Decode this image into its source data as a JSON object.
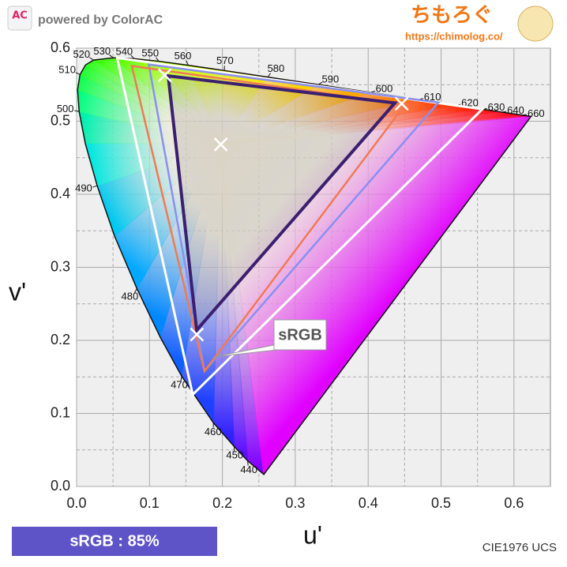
{
  "header": {
    "logo": "AC",
    "brand": "powered by ColorAC",
    "site_name": "ちもろぐ",
    "url": "https://chimolog.co/"
  },
  "chart_data": {
    "type": "scatter",
    "xlabel": "u'",
    "ylabel": "v'",
    "xlim": [
      0,
      0.65
    ],
    "ylim": [
      0,
      0.6
    ],
    "xticks": [
      {
        "value": 0,
        "label": "0.0"
      },
      0.1,
      0.2,
      0.3,
      0.4,
      0.5,
      0.6
    ],
    "yticks": [
      {
        "value": 0,
        "label": "0.0"
      },
      0.1,
      0.2,
      0.3,
      0.4,
      0.5,
      0.6
    ],
    "xminorticks": [
      0.05,
      0.15,
      0.25,
      0.35,
      0.45,
      0.55
    ],
    "yminorticks": [
      0.05,
      0.15,
      0.25,
      0.35,
      0.45,
      0.55
    ],
    "grid": true,
    "locus": {
      "wavelengths": [
        null,
        440,
        450,
        460,
        470,
        null,
        480,
        null,
        490,
        null,
        500,
        null,
        510,
        null,
        520,
        530,
        540,
        550,
        560,
        570,
        580,
        590,
        600,
        610,
        620,
        630,
        640,
        660,
        null
      ],
      "u": [
        0.2568,
        0.2347,
        0.2161,
        0.1877,
        0.1441,
        0.1147,
        0.0828,
        0.0521,
        0.0282,
        0.0119,
        0.0035,
        0.0014,
        0.0046,
        0.0123,
        0.0231,
        0.0501,
        0.0792,
        0.1127,
        0.1531,
        0.2026,
        0.2623,
        0.3315,
        0.4035,
        0.4692,
        0.5203,
        0.5565,
        0.583,
        0.6109,
        0.6234
      ],
      "v": [
        0.0165,
        0.035,
        0.0549,
        0.0871,
        0.151,
        0.2044,
        0.2708,
        0.3427,
        0.4117,
        0.4698,
        0.5131,
        0.5432,
        0.5638,
        0.577,
        0.5837,
        0.5868,
        0.5856,
        0.5821,
        0.5766,
        0.5694,
        0.5604,
        0.5501,
        0.5393,
        0.5296,
        0.5219,
        0.5165,
        0.5125,
        0.5084,
        0.5065
      ],
      "colors": [
        "#8000ff",
        "#5a10ff",
        "#3020ff",
        "#2040ff",
        "#1060ff",
        "#0088ff",
        "#00a8ff",
        "#00c8f0",
        "#00e8e0",
        "#00f0b0",
        "#00ff80",
        "#10ff50",
        "#20ff30",
        "#30ff20",
        "#40ff10",
        "#60ff00",
        "#90ff00",
        "#b8ff00",
        "#d8f800",
        "#f0e800",
        "#ffd000",
        "#ffa800",
        "#ff7800",
        "#ff4000",
        "#ff2000",
        "#ff1010",
        "#ff0820",
        "#ff0030",
        "#ff0040"
      ],
      "purple_color": "#e000ff",
      "white_color": "#efe8d6",
      "outline_color": "#111111"
    },
    "gamuts": [
      {
        "color": "#ffffff",
        "u": [
          0.0556,
          0.5566,
          0.1593
        ],
        "v": [
          0.5868,
          0.5165,
          0.1258
        ]
      },
      {
        "color": "#8a8ff0",
        "u": [
          0.099,
          0.4964,
          0.1754
        ],
        "v": [
          0.5777,
          0.5256,
          0.1579
        ]
      },
      {
        "color": "#f07a55",
        "u": [
          0.0757,
          0.4507,
          0.1754
        ],
        "v": [
          0.5757,
          0.5229,
          0.1579
        ]
      },
      {
        "color": "#3b1f70",
        "u": [
          0.1257,
          0.4366,
          0.1647
        ],
        "v": [
          0.562,
          0.525,
          0.214
        ]
      }
    ],
    "markers": {
      "color": "#ffffff",
      "u": [
        0.121,
        0.446,
        0.165,
        0.1978
      ],
      "v": [
        0.563,
        0.524,
        0.208,
        0.4683
      ]
    },
    "annotation": {
      "text": "sRGB"
    }
  },
  "footer": {
    "badge": "sRGB : 85%",
    "caption": "CIE1976 UCS"
  }
}
